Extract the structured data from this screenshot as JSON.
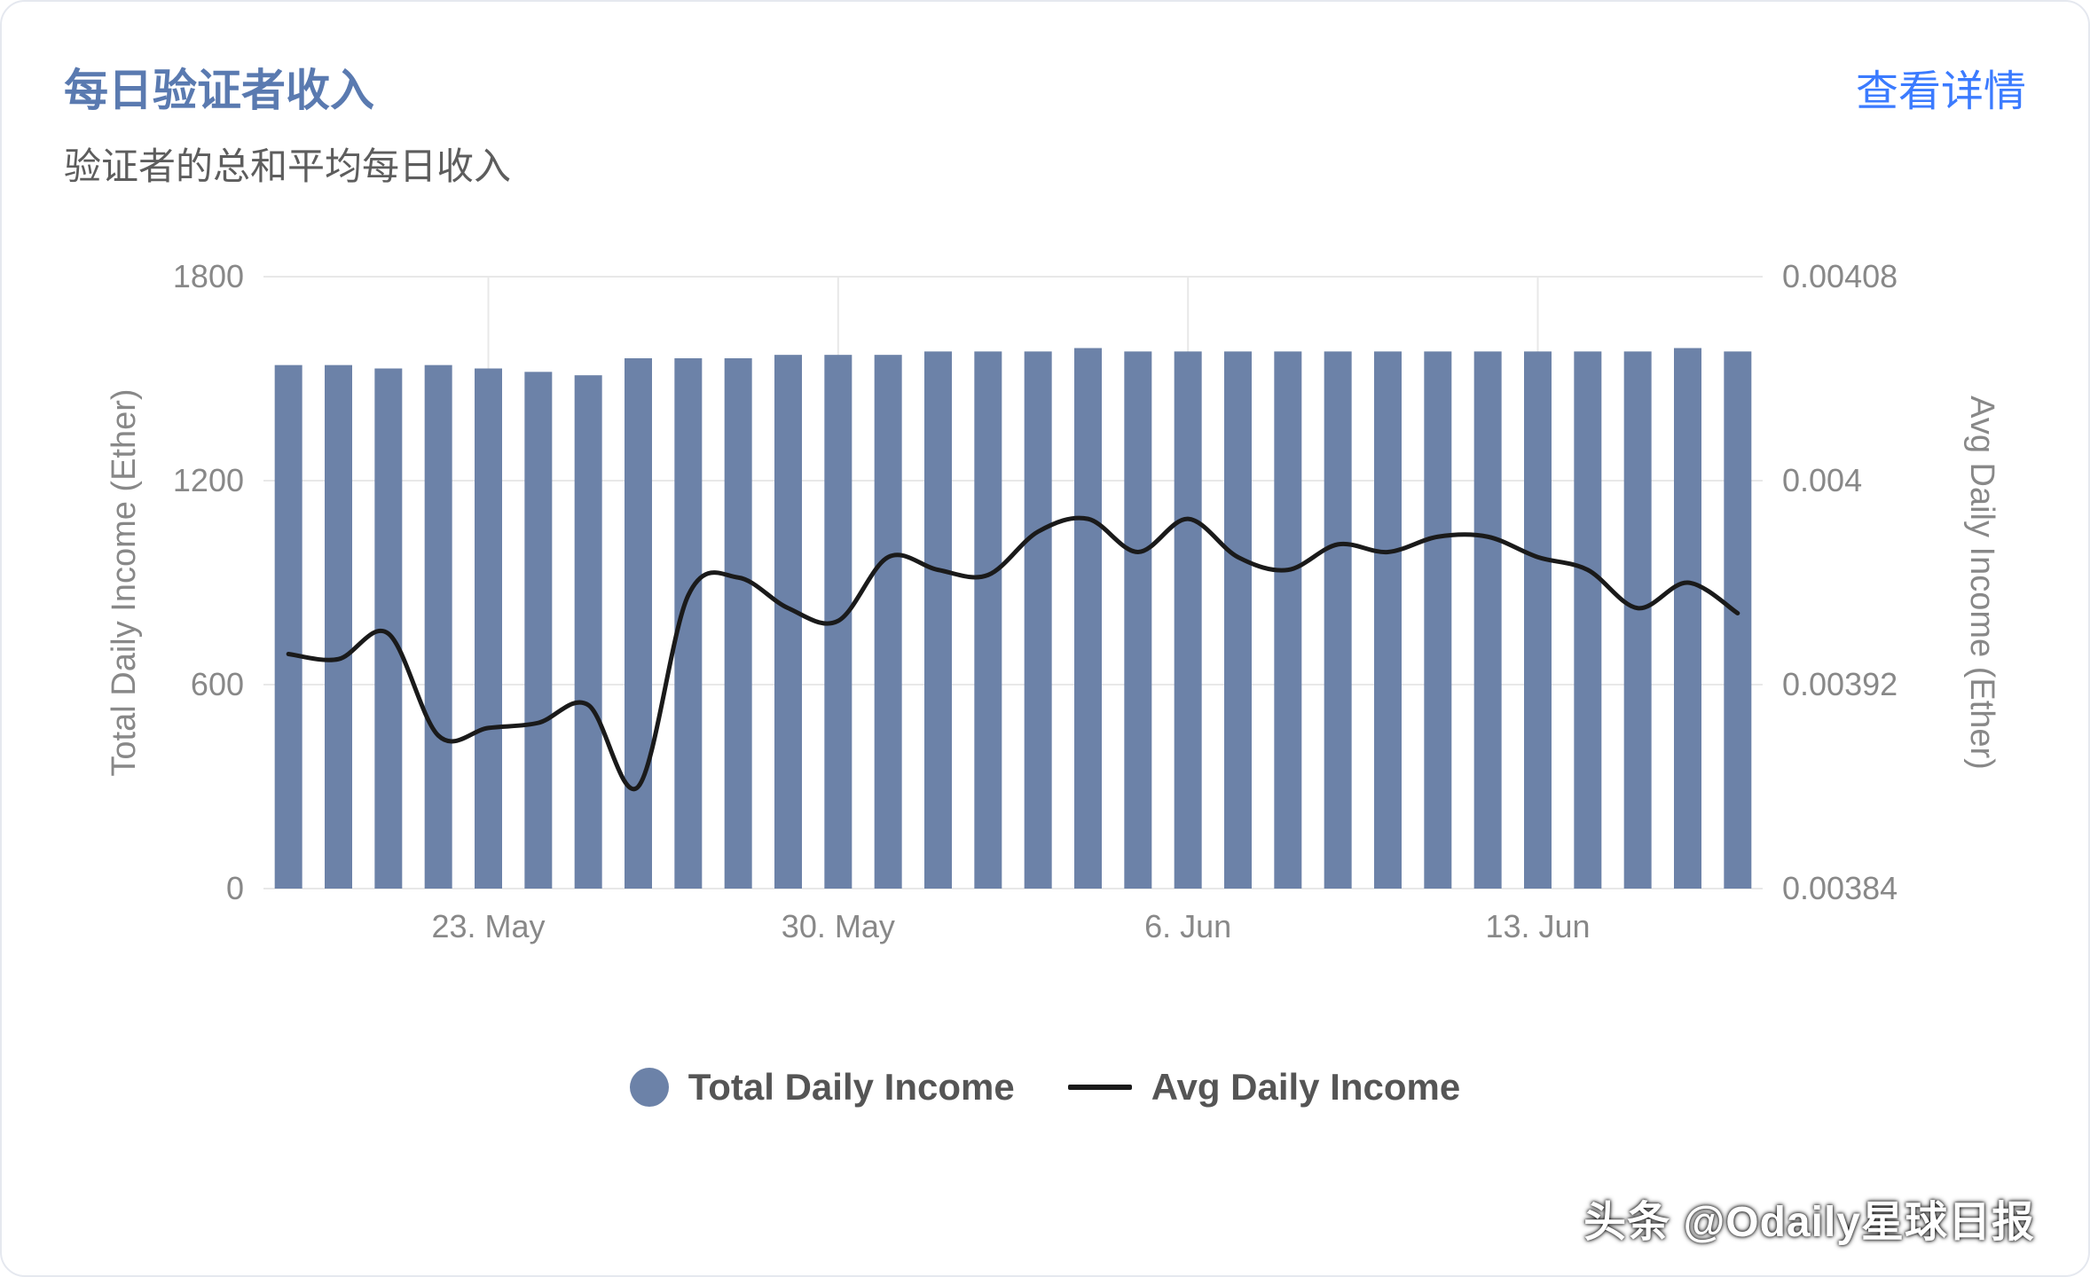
{
  "colors": {
    "title": "#5a7ab0",
    "subtitle": "#5d5d5d",
    "link": "#3b7bff",
    "bar": "#6c82a8",
    "line": "#1a1a1a",
    "axis_text": "#888888",
    "grid": "#e8e8e8",
    "legend_text": "#555555",
    "background": "#ffffff"
  },
  "header": {
    "title": "每日验证者收入",
    "subtitle": "验证者的总和平均每日收入",
    "link": "查看详情"
  },
  "watermark": "头条 @Odaily星球日报",
  "chart": {
    "type": "bar+line",
    "y_left": {
      "label": "Total Daily Income (Ether)",
      "min": 0,
      "max": 1800,
      "ticks": [
        0,
        600,
        1200,
        1800
      ],
      "fontsize": 36,
      "label_fontsize": 38
    },
    "y_right": {
      "label": "Avg Daily Income (Ether)",
      "min": 0.00384,
      "max": 0.00408,
      "ticks": [
        0.00384,
        0.00392,
        0.004,
        0.00408
      ],
      "fontsize": 36,
      "label_fontsize": 38
    },
    "x": {
      "ticks": [
        {
          "index": 4,
          "label": "23. May"
        },
        {
          "index": 11,
          "label": "30. May"
        },
        {
          "index": 18,
          "label": "6. Jun"
        },
        {
          "index": 25,
          "label": "13. Jun"
        }
      ],
      "fontsize": 36
    },
    "bars": {
      "values": [
        1540,
        1540,
        1530,
        1540,
        1530,
        1520,
        1510,
        1560,
        1560,
        1560,
        1570,
        1570,
        1570,
        1580,
        1580,
        1580,
        1590,
        1580,
        1580,
        1580,
        1580,
        1580,
        1580,
        1580,
        1580,
        1580,
        1580,
        1580,
        1590,
        1580
      ],
      "color": "#6c82a8",
      "width_ratio": 0.55
    },
    "line": {
      "values": [
        0.003932,
        0.00393,
        0.00394,
        0.0039,
        0.003903,
        0.003905,
        0.003912,
        0.00388,
        0.003955,
        0.003962,
        0.00395,
        0.003945,
        0.00397,
        0.003965,
        0.003963,
        0.00398,
        0.003985,
        0.003972,
        0.003985,
        0.00397,
        0.003965,
        0.003975,
        0.003972,
        0.003978,
        0.003978,
        0.00397,
        0.003965,
        0.00395,
        0.00396,
        0.003948
      ],
      "color": "#1a1a1a",
      "width": 5
    },
    "legend": {
      "bar_label": "Total Daily Income",
      "line_label": "Avg Daily Income"
    }
  }
}
